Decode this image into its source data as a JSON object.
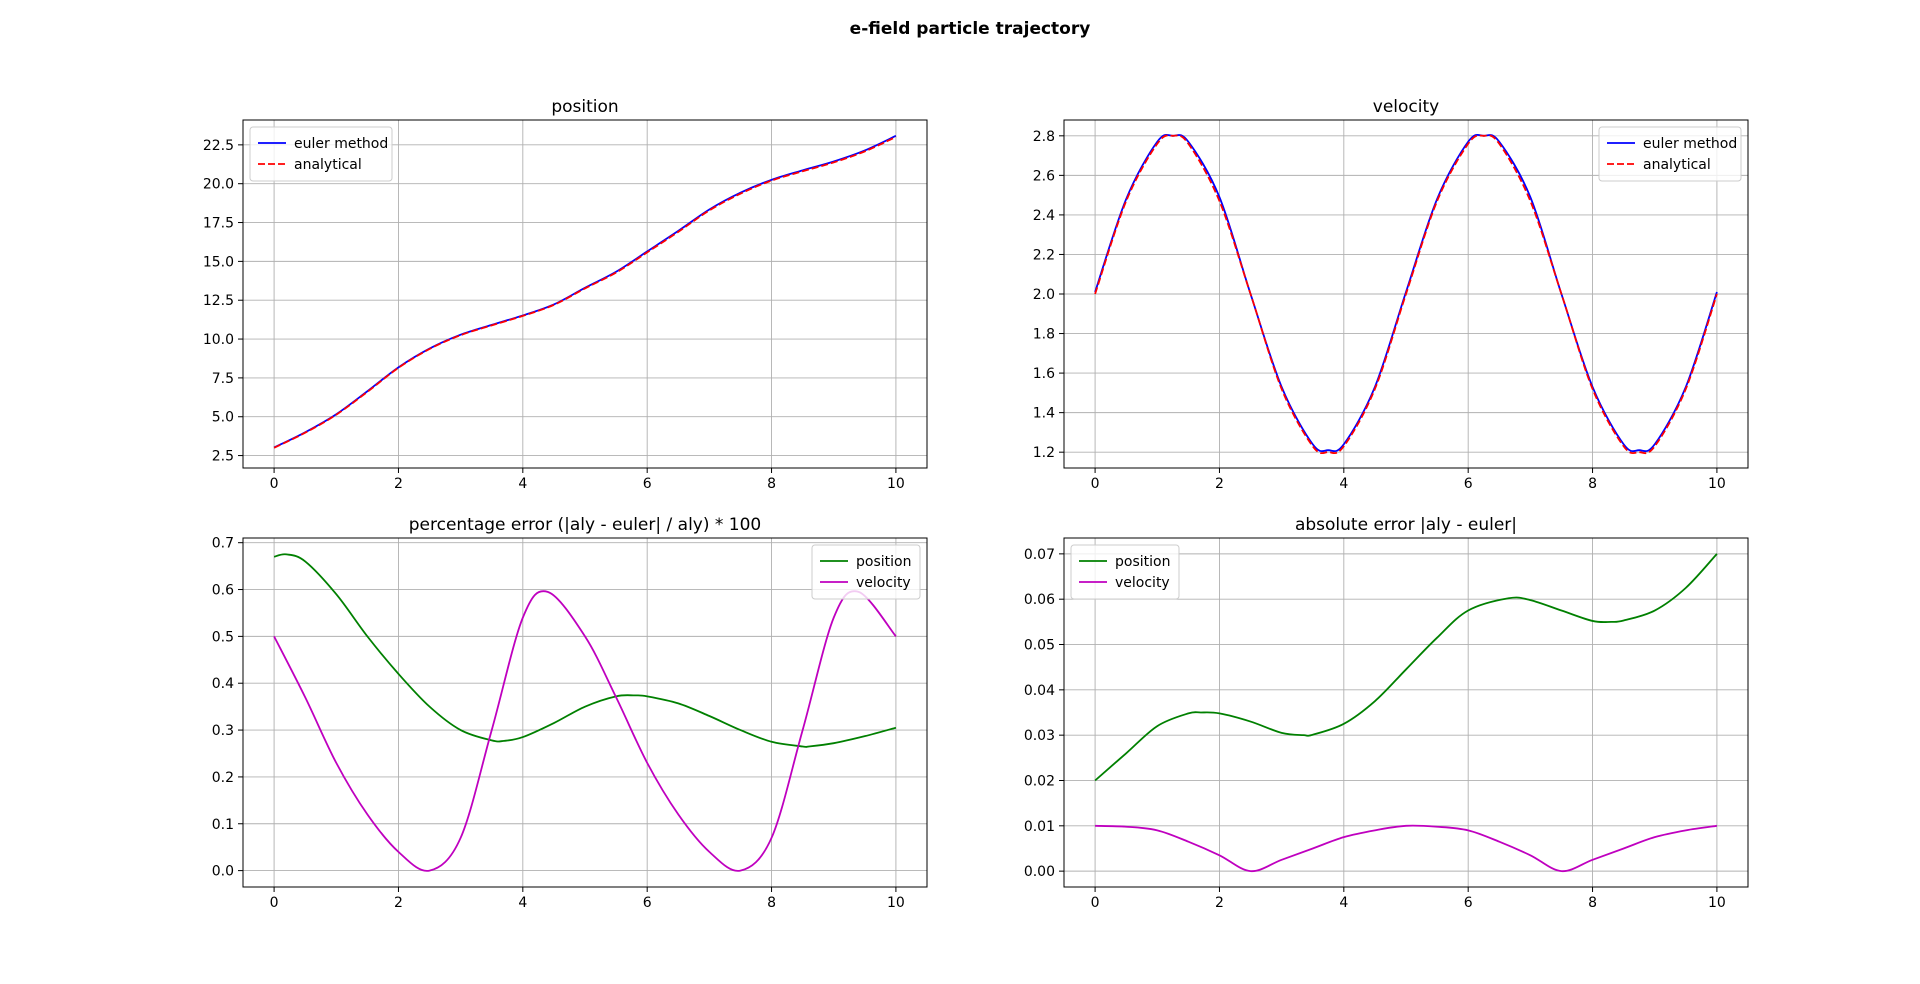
{
  "figure": {
    "suptitle": "e-field particle trajectory"
  },
  "chart_data": [
    {
      "id": "position",
      "type": "line",
      "title": "position",
      "xlabel": "",
      "ylabel": "",
      "xlim": [
        -0.5,
        10.5
      ],
      "ylim": [
        1.7,
        24.1
      ],
      "xticks": [
        0,
        2,
        4,
        6,
        8,
        10
      ],
      "yticks": [
        2.5,
        5.0,
        7.5,
        10.0,
        12.5,
        15.0,
        17.5,
        20.0,
        22.5
      ],
      "grid": true,
      "legend_position": "top-left",
      "series": [
        {
          "name": "euler method",
          "color": "#0000ff",
          "style": "solid",
          "x": [
            0,
            0.5,
            1,
            1.5,
            2,
            2.5,
            3,
            3.5,
            4,
            4.5,
            5,
            5.5,
            6,
            6.5,
            7,
            7.5,
            8,
            8.5,
            9,
            9.5,
            10
          ],
          "y": [
            3.02,
            4.0,
            5.16,
            6.64,
            8.18,
            9.39,
            10.28,
            10.91,
            11.52,
            12.23,
            13.3,
            14.33,
            15.64,
            16.96,
            18.34,
            19.42,
            20.25,
            20.86,
            21.43,
            22.14,
            23.08
          ]
        },
        {
          "name": "analytical",
          "color": "#ff0000",
          "style": "dashed",
          "x": [
            0,
            0.5,
            1,
            1.5,
            2,
            2.5,
            3,
            3.5,
            4,
            4.5,
            5,
            5.5,
            6,
            6.5,
            7,
            7.5,
            8,
            8.5,
            9,
            9.5,
            10
          ],
          "y": [
            3.0,
            3.97,
            5.13,
            6.6,
            8.15,
            9.36,
            10.25,
            10.88,
            11.49,
            12.2,
            13.26,
            14.28,
            15.58,
            16.9,
            18.28,
            19.36,
            20.2,
            20.8,
            21.37,
            22.08,
            23.01
          ]
        }
      ]
    },
    {
      "id": "velocity",
      "type": "line",
      "title": "velocity",
      "xlabel": "",
      "ylabel": "",
      "xlim": [
        -0.5,
        10.5
      ],
      "ylim": [
        1.12,
        2.88
      ],
      "xticks": [
        0,
        2,
        4,
        6,
        8,
        10
      ],
      "yticks": [
        1.2,
        1.4,
        1.6,
        1.8,
        2.0,
        2.2,
        2.4,
        2.6,
        2.8
      ],
      "grid": true,
      "legend_position": "top-right",
      "series": [
        {
          "name": "euler method",
          "color": "#0000ff",
          "style": "solid",
          "x": [
            0,
            0.5,
            1,
            1.25,
            1.5,
            2,
            2.5,
            3,
            3.5,
            3.75,
            4,
            4.5,
            5,
            5.5,
            6,
            6.25,
            6.5,
            7,
            7.5,
            8,
            8.5,
            8.75,
            9,
            9.5,
            10
          ],
          "y": [
            2.01,
            2.48,
            2.77,
            2.8,
            2.77,
            2.49,
            2.0,
            1.53,
            1.24,
            1.21,
            1.24,
            1.53,
            2.01,
            2.48,
            2.77,
            2.8,
            2.77,
            2.49,
            2.0,
            1.53,
            1.24,
            1.21,
            1.24,
            1.53,
            2.01
          ]
        },
        {
          "name": "analytical",
          "color": "#ff0000",
          "style": "dashed",
          "x": [
            0,
            0.5,
            1,
            1.25,
            1.5,
            2,
            2.5,
            3,
            3.5,
            3.75,
            4,
            4.5,
            5,
            5.5,
            6,
            6.25,
            6.5,
            7,
            7.5,
            8,
            8.5,
            8.75,
            9,
            9.5,
            10
          ],
          "y": [
            2.0,
            2.47,
            2.76,
            2.8,
            2.76,
            2.47,
            2.0,
            1.52,
            1.23,
            1.2,
            1.23,
            1.52,
            2.0,
            2.47,
            2.76,
            2.8,
            2.76,
            2.47,
            2.0,
            1.52,
            1.23,
            1.2,
            1.23,
            1.52,
            2.0
          ]
        }
      ]
    },
    {
      "id": "percentage-error",
      "type": "line",
      "title": "percentage error (|aly - euler| / aly) * 100",
      "xlabel": "",
      "ylabel": "",
      "xlim": [
        -0.5,
        10.5
      ],
      "ylim": [
        -0.035,
        0.71
      ],
      "xticks": [
        0,
        2,
        4,
        6,
        8,
        10
      ],
      "yticks": [
        0.0,
        0.1,
        0.2,
        0.3,
        0.4,
        0.5,
        0.6,
        0.7
      ],
      "grid": true,
      "legend_position": "top-right",
      "series": [
        {
          "name": "position",
          "color": "#008000",
          "style": "solid",
          "x": [
            0,
            0.2,
            0.5,
            1,
            1.5,
            2,
            2.5,
            3,
            3.5,
            3.7,
            4,
            4.5,
            5,
            5.5,
            5.8,
            6,
            6.5,
            7,
            7.5,
            8,
            8.5,
            8.6,
            9,
            9.5,
            10
          ],
          "y": [
            0.67,
            0.675,
            0.66,
            0.59,
            0.5,
            0.42,
            0.35,
            0.3,
            0.278,
            0.277,
            0.285,
            0.315,
            0.35,
            0.372,
            0.374,
            0.372,
            0.357,
            0.33,
            0.3,
            0.275,
            0.265,
            0.265,
            0.272,
            0.287,
            0.305
          ]
        },
        {
          "name": "velocity",
          "color": "#bf00bf",
          "style": "solid",
          "x": [
            0,
            0.5,
            1,
            1.5,
            2,
            2.5,
            3,
            3.5,
            4,
            4.4,
            5,
            5.5,
            6,
            6.5,
            7,
            7.5,
            8,
            8.5,
            9,
            9.4,
            10
          ],
          "y": [
            0.5,
            0.37,
            0.23,
            0.12,
            0.04,
            0.0,
            0.07,
            0.3,
            0.54,
            0.595,
            0.5,
            0.37,
            0.23,
            0.12,
            0.04,
            0.0,
            0.07,
            0.3,
            0.54,
            0.595,
            0.5
          ]
        }
      ]
    },
    {
      "id": "absolute-error",
      "type": "line",
      "title": "absolute error |aly - euler|",
      "xlabel": "",
      "ylabel": "",
      "xlim": [
        -0.5,
        10.5
      ],
      "ylim": [
        -0.0035,
        0.0735
      ],
      "xticks": [
        0,
        2,
        4,
        6,
        8,
        10
      ],
      "yticks": [
        0.0,
        0.01,
        0.02,
        0.03,
        0.04,
        0.05,
        0.06,
        0.07
      ],
      "grid": true,
      "legend_position": "top-left",
      "series": [
        {
          "name": "position",
          "color": "#008000",
          "style": "solid",
          "x": [
            0,
            0.5,
            1,
            1.5,
            1.7,
            2,
            2.5,
            3,
            3.35,
            3.5,
            4,
            4.5,
            5,
            5.5,
            6,
            6.65,
            7,
            7.5,
            8,
            8.3,
            8.5,
            9,
            9.5,
            10
          ],
          "y": [
            0.02,
            0.026,
            0.032,
            0.0348,
            0.035,
            0.0348,
            0.033,
            0.0305,
            0.03,
            0.0301,
            0.0325,
            0.0375,
            0.0445,
            0.0515,
            0.0575,
            0.0602,
            0.0598,
            0.0575,
            0.0552,
            0.055,
            0.0553,
            0.0575,
            0.0625,
            0.07
          ]
        },
        {
          "name": "velocity",
          "color": "#bf00bf",
          "style": "solid",
          "x": [
            0,
            0.5,
            1,
            1.5,
            2,
            2.5,
            3,
            3.5,
            4,
            4.5,
            5,
            5.5,
            6,
            6.5,
            7,
            7.5,
            8,
            8.5,
            9,
            9.5,
            10
          ],
          "y": [
            0.01,
            0.0098,
            0.009,
            0.0065,
            0.0035,
            0.0,
            0.0025,
            0.005,
            0.0075,
            0.009,
            0.01,
            0.0098,
            0.009,
            0.0065,
            0.0035,
            0.0,
            0.0025,
            0.005,
            0.0075,
            0.009,
            0.01
          ]
        }
      ]
    }
  ]
}
